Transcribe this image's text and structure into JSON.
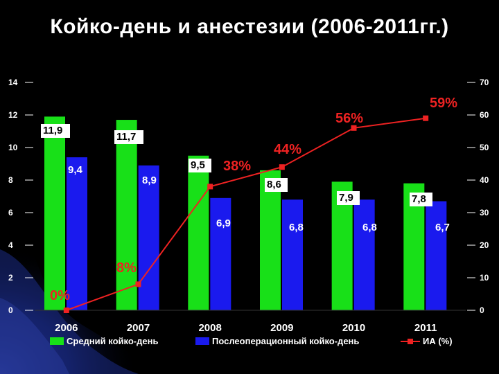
{
  "slide": {
    "title": "Койко-день и анестезии (2006-2011гг.)"
  },
  "colors": {
    "series_green": "#18e018",
    "series_blue": "#1a1aee",
    "series_line": "#ee2222",
    "label_box": "#ffffff",
    "background": "#000000"
  },
  "chart_data": {
    "type": "bar",
    "categories": [
      "2006",
      "2007",
      "2008",
      "2009",
      "2010",
      "2011"
    ],
    "series": [
      {
        "name": "Средний койко-день",
        "type": "bar",
        "axis": "left",
        "values": [
          11.9,
          11.7,
          9.5,
          8.6,
          7.9,
          7.8
        ],
        "labels": [
          "11,9",
          "11,7",
          "9,5",
          "8,6",
          "7,9",
          "7,8"
        ]
      },
      {
        "name": "Послеоперационный койко-день",
        "type": "bar",
        "axis": "left",
        "values": [
          9.4,
          8.9,
          6.9,
          6.8,
          6.8,
          6.7
        ],
        "labels": [
          "9,4",
          "8,9",
          "6,9",
          "6,8",
          "6,8",
          "6,7"
        ]
      },
      {
        "name": "ИА (%)",
        "type": "line",
        "axis": "right",
        "values": [
          0,
          8,
          38,
          44,
          56,
          59
        ],
        "labels": [
          "0%",
          "8%",
          "38%",
          "44%",
          "56%",
          "59%"
        ]
      }
    ],
    "y_left": {
      "min": 0,
      "max": 14,
      "ticks": [
        "0",
        "2",
        "4",
        "6",
        "8",
        "10",
        "12",
        "14"
      ]
    },
    "y_right": {
      "min": 0,
      "max": 70,
      "ticks": [
        "0",
        "10",
        "20",
        "30",
        "40",
        "50",
        "60",
        "70"
      ]
    },
    "legend_position": "bottom",
    "grid": false
  }
}
